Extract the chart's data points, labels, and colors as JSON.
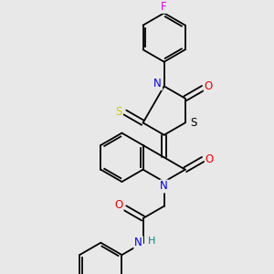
{
  "background_color": "#e8e8e8",
  "line_color": "#000000",
  "lw": 1.3,
  "atom_colors": {
    "N": "#0000ee",
    "O": "#ee0000",
    "S_yellow": "#cccc00",
    "S_black": "#000000",
    "F": "#ee00ee",
    "H": "#008888",
    "C": "#000000"
  },
  "font_size": 8.5
}
